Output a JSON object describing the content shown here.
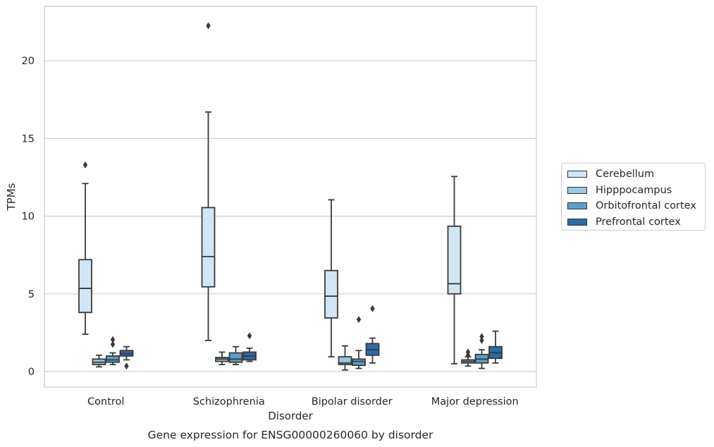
{
  "chart_data": {
    "type": "box",
    "xlabel": "Disorder",
    "ylabel": "TPMs",
    "title": "Gene expression for ENSG00000260060 by disorder",
    "ylim": [
      -1,
      23.5
    ],
    "yticks": [
      0,
      5,
      10,
      15,
      20
    ],
    "grid": "horizontal",
    "legend_position": "right",
    "categories": [
      "Control",
      "Schizophrenia",
      "Bipolar disorder",
      "Major depression"
    ],
    "series": [
      {
        "name": "Cerebellum",
        "color": "#d3e4f3",
        "boxes": [
          {
            "whislo": 2.4,
            "q1": 3.8,
            "med": 5.35,
            "q3": 7.2,
            "whishi": 12.1,
            "fliers": [
              13.3
            ]
          },
          {
            "whislo": 2.0,
            "q1": 5.45,
            "med": 7.4,
            "q3": 10.55,
            "whishi": 16.7,
            "fliers": [
              22.25
            ]
          },
          {
            "whislo": 0.95,
            "q1": 3.45,
            "med": 4.85,
            "q3": 6.5,
            "whishi": 11.05,
            "fliers": []
          },
          {
            "whislo": 0.5,
            "q1": 5.0,
            "med": 5.65,
            "q3": 9.35,
            "whishi": 12.55,
            "fliers": []
          }
        ]
      },
      {
        "name": "Hipppocampus",
        "color": "#9ac8e0",
        "boxes": [
          {
            "whislo": 0.3,
            "q1": 0.45,
            "med": 0.6,
            "q3": 0.8,
            "whishi": 1.05,
            "fliers": []
          },
          {
            "whislo": 0.45,
            "q1": 0.65,
            "med": 0.8,
            "q3": 0.9,
            "whishi": 1.25,
            "fliers": []
          },
          {
            "whislo": 0.1,
            "q1": 0.45,
            "med": 0.55,
            "q3": 0.95,
            "whishi": 1.65,
            "fliers": []
          },
          {
            "whislo": 0.35,
            "q1": 0.55,
            "med": 0.65,
            "q3": 0.75,
            "whishi": 0.95,
            "fliers": [
              1.05,
              1.25
            ]
          }
        ]
      },
      {
        "name": "Orbitofrontal cortex",
        "color": "#5a9fcb",
        "boxes": [
          {
            "whislo": 0.45,
            "q1": 0.6,
            "med": 0.75,
            "q3": 1.0,
            "whishi": 1.2,
            "fliers": [
              1.75,
              2.05
            ]
          },
          {
            "whislo": 0.45,
            "q1": 0.6,
            "med": 0.8,
            "q3": 1.2,
            "whishi": 1.6,
            "fliers": []
          },
          {
            "whislo": 0.2,
            "q1": 0.4,
            "med": 0.65,
            "q3": 0.8,
            "whishi": 1.35,
            "fliers": [
              3.35
            ]
          },
          {
            "whislo": 0.2,
            "q1": 0.55,
            "med": 0.8,
            "q3": 1.1,
            "whishi": 1.4,
            "fliers": [
              2.0,
              2.25
            ]
          }
        ]
      },
      {
        "name": "Prefrontal cortex",
        "color": "#2b6ba7",
        "boxes": [
          {
            "whislo": 0.75,
            "q1": 1.0,
            "med": 1.15,
            "q3": 1.35,
            "whishi": 1.6,
            "fliers": [
              0.35
            ]
          },
          {
            "whislo": 0.65,
            "q1": 0.75,
            "med": 1.0,
            "q3": 1.25,
            "whishi": 1.5,
            "fliers": [
              2.3
            ]
          },
          {
            "whislo": 0.55,
            "q1": 1.05,
            "med": 1.4,
            "q3": 1.8,
            "whishi": 2.15,
            "fliers": [
              4.05
            ]
          },
          {
            "whislo": 0.55,
            "q1": 0.85,
            "med": 1.2,
            "q3": 1.6,
            "whishi": 2.6,
            "fliers": []
          }
        ]
      }
    ]
  }
}
